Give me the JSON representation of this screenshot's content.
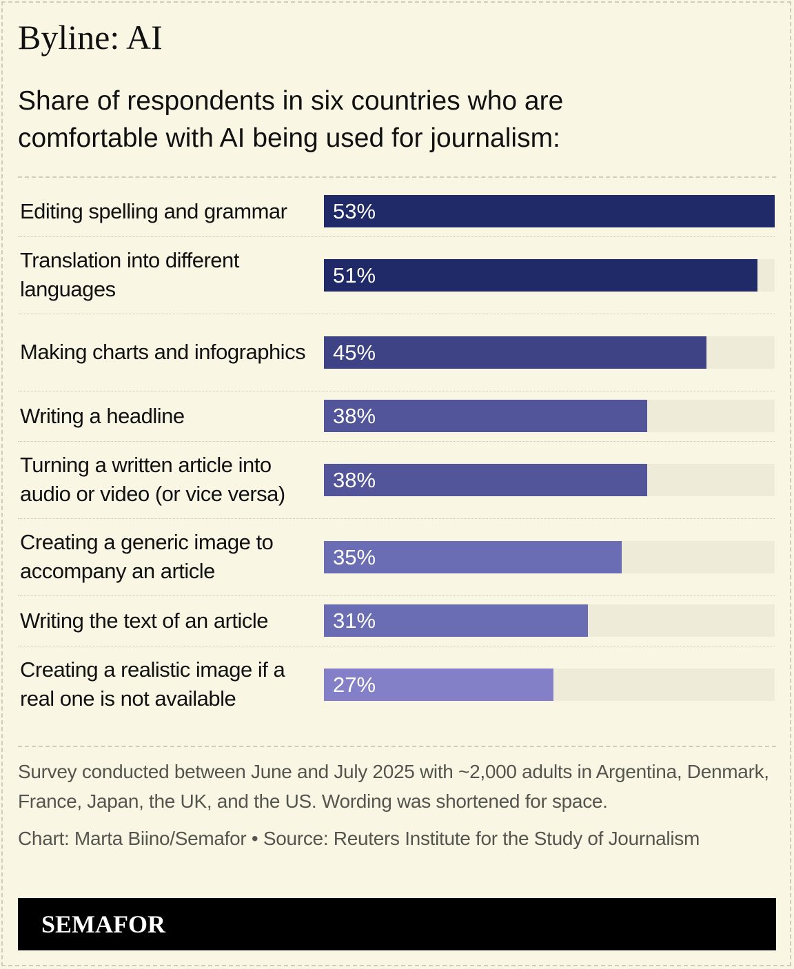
{
  "headline": "Byline: AI",
  "subtitle": "Share of respondents in six countries who are comfortable with AI being used for journalism:",
  "colors": {
    "background": "#f9f7e4",
    "track": "#efebd9",
    "bar_shades": [
      "#212a68",
      "#212a68",
      "#3d4384",
      "#52559a",
      "#52559a",
      "#6a6db4",
      "#6a6db4",
      "#8480c8"
    ]
  },
  "chart_data": {
    "type": "bar",
    "orientation": "horizontal",
    "categories": [
      "Editing spelling and grammar",
      "Translation into different languages",
      "Making charts and infographics",
      "Writing a headline",
      "Turning a written article into audio or video (or vice versa)",
      "Creating a generic image to accompany an article",
      "Writing the text of an article",
      "Creating a realistic image if a real one is not available"
    ],
    "values": [
      53,
      51,
      45,
      38,
      38,
      35,
      31,
      27
    ],
    "value_labels": [
      "53%",
      "51%",
      "45%",
      "38%",
      "38%",
      "35%",
      "31%",
      "27%"
    ],
    "title": "Share of respondents in six countries who are comfortable with AI being used for journalism:",
    "xlim": [
      0,
      53
    ],
    "grid": false,
    "legend": "none"
  },
  "notes": {
    "survey": "Survey conducted between June and July 2025 with ~2,000 adults in Argentina, Denmark, France, Japan, the UK, and the US. Wording was shortened for space.",
    "credit": "Chart: Marta Biino/Semafor • Source: Reuters Institute for the Study of Journalism"
  },
  "brand": "SEMAFOR"
}
